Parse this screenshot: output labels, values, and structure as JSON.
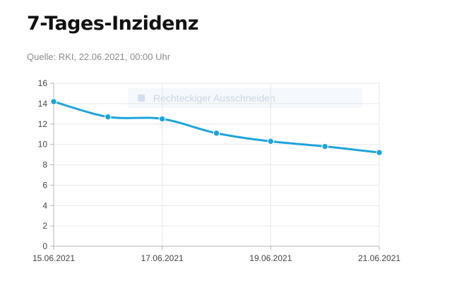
{
  "header": {
    "title": "7-Tages-Inzidenz",
    "source": "Quelle: RKI, 22.06.2021, 00:00 Uhr"
  },
  "overlay": {
    "label": "Rechteckiger Ausschneiden",
    "icon": "selection-tool-icon"
  },
  "chart_data": {
    "type": "line",
    "title": "7-Tages-Inzidenz",
    "xlabel": "",
    "ylabel": "",
    "x": [
      "15.06.2021",
      "16.06.2021",
      "17.06.2021",
      "18.06.2021",
      "19.06.2021",
      "20.06.2021",
      "21.06.2021"
    ],
    "series": [
      {
        "values": [
          14.2,
          12.7,
          12.5,
          11.1,
          10.3,
          9.8,
          9.2
        ],
        "color": "#1ea4dc"
      }
    ],
    "x_tick_labels": [
      "15.06.2021",
      "17.06.2021",
      "19.06.2021",
      "21.06.2021"
    ],
    "ylim": [
      0,
      16
    ],
    "y_ticks": [
      0,
      2,
      4,
      6,
      8,
      10,
      12,
      14,
      16
    ],
    "grid": true,
    "legend": "none"
  }
}
